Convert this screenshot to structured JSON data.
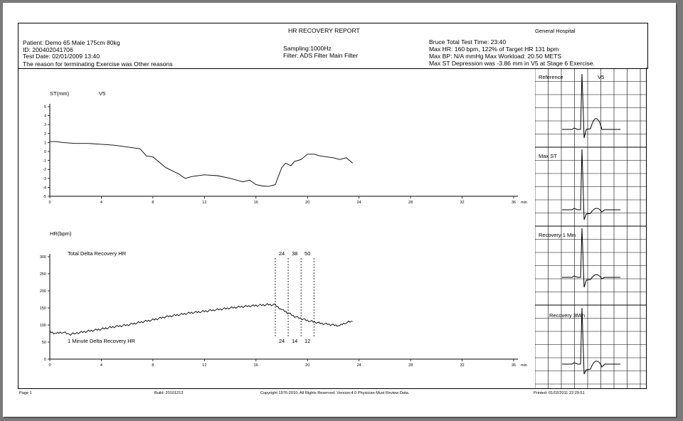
{
  "report": {
    "title": "HR RECOVERY REPORT",
    "hospital": "General Hospital",
    "patient": "Patient: Demo    65   Male   175cm   80kg",
    "id": "ID: 200402041706",
    "test_date": "Test Date: 02/01/2009 13:40",
    "termination": "The reason for terminating Exercise was Other reasons",
    "sampling": "Sampling:1000Hz",
    "filter": "Filter:    ADS Filter      Main Filter",
    "protocol": "Bruce  Total Test Time: 23:40",
    "max_hr": "Max HR: 160 bpm, 122% of Target HR 131 bpm",
    "max_bp": "Max BP: N/A mmHg   Max Workload: 20.50 METS",
    "max_st": "Max ST Depression was -3.86 mm in V5 at Stage 6 Exercise."
  },
  "footer": {
    "page": "Page 1",
    "build": "Build:  20101213",
    "copyright": "Copyright 1976-2010, All Rights Reserved.   Version:4.0    Physician Must Review Data.",
    "printed": "Printed: 01/02/2011 22:29:51"
  },
  "ecg_panels": [
    {
      "label": "Reference",
      "lead": "V5"
    },
    {
      "label": "Max ST",
      "lead": ""
    },
    {
      "label": "Recovery 1 Min",
      "lead": ""
    },
    {
      "label": "Recovery 3Min",
      "lead": ""
    }
  ],
  "chart_data": [
    {
      "type": "line",
      "title": "ST(mm)",
      "lead": "V5",
      "ylabel": "ST(mm)",
      "xunit": "min",
      "xlim": [
        0,
        36
      ],
      "ylim": [
        -5,
        5
      ],
      "xticks": [
        0,
        4,
        8,
        12,
        16,
        20,
        24,
        28,
        32,
        36
      ],
      "yticks": [
        5,
        4,
        3,
        2,
        1,
        0,
        -1,
        -2,
        -3,
        -4,
        -5
      ],
      "grid": false,
      "x": [
        0,
        0.5,
        1,
        2,
        3,
        4,
        5,
        6,
        7,
        7.5,
        8,
        9,
        10,
        10.5,
        11,
        12,
        13,
        14,
        15,
        15.5,
        16,
        16.5,
        17,
        17.5,
        18,
        18.3,
        18.7,
        19,
        19.5,
        20,
        20.5,
        21,
        22,
        22.5,
        23,
        23.5
      ],
      "y": [
        1.1,
        1.1,
        1.0,
        0.9,
        0.9,
        0.8,
        0.7,
        0.5,
        0.3,
        -0.5,
        -0.6,
        -1.8,
        -2.5,
        -3.0,
        -2.8,
        -2.6,
        -2.7,
        -3.0,
        -3.4,
        -3.2,
        -3.7,
        -3.85,
        -3.9,
        -3.7,
        -1.8,
        -1.3,
        -1.6,
        -1.1,
        -0.9,
        -0.3,
        -0.3,
        -0.5,
        -0.7,
        -0.9,
        -0.7,
        -1.3
      ]
    },
    {
      "type": "line",
      "title": "HR(bpm)",
      "ylabel": "HR(bpm)",
      "xunit": "min",
      "xlim": [
        0,
        36
      ],
      "ylim": [
        0,
        300
      ],
      "xticks": [
        0,
        4,
        8,
        12,
        16,
        20,
        24,
        28,
        32,
        36
      ],
      "yticks": [
        0,
        50,
        100,
        150,
        200,
        250,
        300
      ],
      "grid": false,
      "x": [
        0,
        0.5,
        1,
        1.5,
        2,
        3,
        4,
        5,
        6,
        7,
        8,
        9,
        10,
        11,
        12,
        13,
        14,
        15,
        16,
        17,
        17.5,
        18,
        19,
        20,
        21,
        22,
        22.5,
        23,
        23.5
      ],
      "y": [
        80,
        75,
        80,
        72,
        76,
        82,
        88,
        95,
        100,
        108,
        115,
        124,
        130,
        136,
        140,
        145,
        150,
        154,
        157,
        160,
        158,
        145,
        125,
        113,
        105,
        100,
        98,
        108,
        110
      ],
      "annotations": {
        "total_delta_label": "Total Delta Recovery HR",
        "total_delta_values": [
          "24",
          "38",
          "50"
        ],
        "minute_delta_label": "1 Minute Delta Recovery HR",
        "minute_delta_values": [
          "24",
          "14",
          "12"
        ],
        "recovery_marker_times": [
          17.5,
          18.5,
          19.5,
          20.5
        ]
      }
    }
  ]
}
